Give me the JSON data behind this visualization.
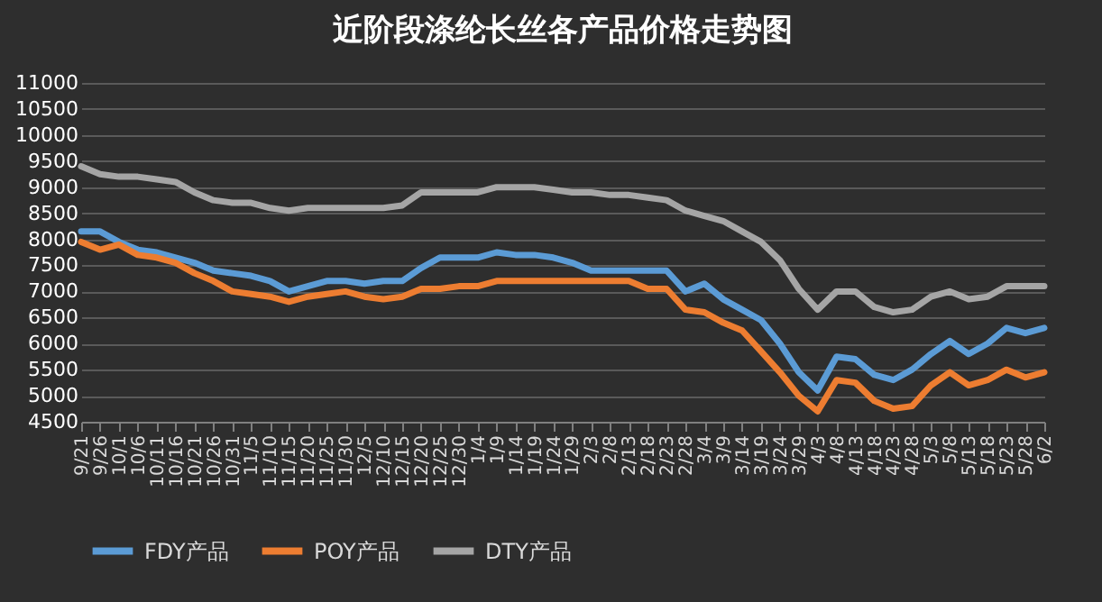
{
  "chart_data": {
    "type": "line",
    "title": "近阶段涤纶长丝各产品价格走势图",
    "categories": [
      "9/21",
      "9/26",
      "10/1",
      "10/6",
      "10/11",
      "10/16",
      "10/21",
      "10/26",
      "10/31",
      "11/5",
      "11/10",
      "11/15",
      "11/20",
      "11/25",
      "11/30",
      "12/5",
      "12/10",
      "12/15",
      "12/20",
      "12/25",
      "12/30",
      "1/4",
      "1/9",
      "1/14",
      "1/19",
      "1/24",
      "1/29",
      "2/3",
      "2/8",
      "2/13",
      "2/18",
      "2/23",
      "2/28",
      "3/4",
      "3/9",
      "3/14",
      "3/19",
      "3/24",
      "3/29",
      "4/3",
      "4/8",
      "4/13",
      "4/18",
      "4/23",
      "4/28",
      "5/3",
      "5/8",
      "5/13",
      "5/18",
      "5/23",
      "5/28",
      "6/2"
    ],
    "series": [
      {
        "name": "FDY产品",
        "color": "#5b9bd5",
        "values": [
          8150,
          8150,
          7950,
          7800,
          7750,
          7650,
          7550,
          7400,
          7350,
          7300,
          7200,
          7000,
          7100,
          7200,
          7200,
          7150,
          7200,
          7200,
          7450,
          7650,
          7650,
          7650,
          7750,
          7700,
          7700,
          7650,
          7550,
          7400,
          7400,
          7400,
          7400,
          7400,
          7000,
          7150,
          6850,
          6650,
          6450,
          6000,
          5450,
          5100,
          5750,
          5700,
          5400,
          5300,
          5500,
          5800,
          6050,
          5800,
          6000,
          6300,
          6200,
          6300
        ]
      },
      {
        "name": "POY产品",
        "color": "#ed7d31",
        "values": [
          7950,
          7800,
          7900,
          7700,
          7650,
          7550,
          7350,
          7200,
          7000,
          6950,
          6900,
          6800,
          6900,
          6950,
          7000,
          6900,
          6850,
          6900,
          7050,
          7050,
          7100,
          7100,
          7200,
          7200,
          7200,
          7200,
          7200,
          7200,
          7200,
          7200,
          7050,
          7050,
          6650,
          6600,
          6400,
          6250,
          5850,
          5450,
          5000,
          4700,
          5300,
          5250,
          4900,
          4750,
          4800,
          5200,
          5450,
          5200,
          5300,
          5500,
          5350,
          5450
        ]
      },
      {
        "name": "DTY产品",
        "color": "#a5a5a5",
        "values": [
          9400,
          9250,
          9200,
          9200,
          9150,
          9100,
          8900,
          8750,
          8700,
          8700,
          8600,
          8550,
          8600,
          8600,
          8600,
          8600,
          8600,
          8650,
          8900,
          8900,
          8900,
          8900,
          9000,
          9000,
          9000,
          8950,
          8900,
          8900,
          8850,
          8850,
          8800,
          8750,
          8550,
          8450,
          8350,
          8150,
          7950,
          7600,
          7050,
          6650,
          7000,
          7000,
          6700,
          6600,
          6650,
          6900,
          7000,
          6850,
          6900,
          7100,
          7100,
          7100
        ]
      }
    ],
    "ylim": [
      4500,
      11000
    ],
    "yticks": [
      4500,
      5000,
      5500,
      6000,
      6500,
      7000,
      7500,
      8000,
      8500,
      9000,
      9500,
      10000,
      10500,
      11000
    ],
    "grid": "y",
    "legend": "bottom",
    "line_style": "solid"
  }
}
